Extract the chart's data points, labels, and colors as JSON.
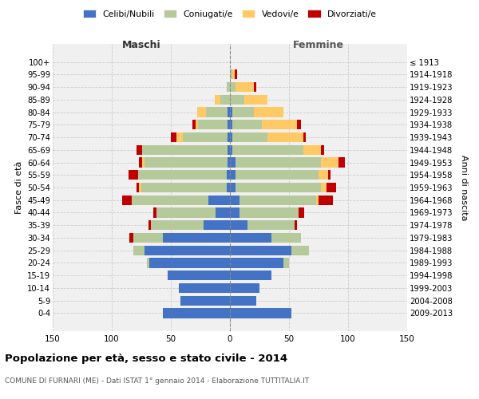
{
  "age_groups": [
    "0-4",
    "5-9",
    "10-14",
    "15-19",
    "20-24",
    "25-29",
    "30-34",
    "35-39",
    "40-44",
    "45-49",
    "50-54",
    "55-59",
    "60-64",
    "65-69",
    "70-74",
    "75-79",
    "80-84",
    "85-89",
    "90-94",
    "95-99",
    "100+"
  ],
  "birth_years": [
    "2009-2013",
    "2004-2008",
    "1999-2003",
    "1994-1998",
    "1989-1993",
    "1984-1988",
    "1979-1983",
    "1974-1978",
    "1969-1973",
    "1964-1968",
    "1959-1963",
    "1954-1958",
    "1949-1953",
    "1944-1948",
    "1939-1943",
    "1934-1938",
    "1929-1933",
    "1924-1928",
    "1919-1923",
    "1914-1918",
    "≤ 1913"
  ],
  "maschi": {
    "celibi": [
      57,
      42,
      43,
      53,
      68,
      72,
      57,
      22,
      12,
      18,
      3,
      3,
      2,
      2,
      2,
      2,
      2,
      0,
      0,
      0,
      0
    ],
    "coniugati": [
      0,
      0,
      0,
      0,
      2,
      10,
      25,
      45,
      50,
      65,
      72,
      75,
      70,
      72,
      38,
      25,
      18,
      8,
      3,
      0,
      0
    ],
    "vedovi": [
      0,
      0,
      0,
      0,
      0,
      0,
      0,
      0,
      0,
      0,
      2,
      0,
      2,
      0,
      5,
      2,
      8,
      5,
      0,
      0,
      0
    ],
    "divorziati": [
      0,
      0,
      0,
      0,
      0,
      0,
      3,
      2,
      3,
      8,
      2,
      8,
      3,
      5,
      5,
      3,
      0,
      0,
      0,
      0,
      0
    ]
  },
  "femmine": {
    "nubili": [
      52,
      22,
      25,
      35,
      45,
      52,
      35,
      15,
      8,
      8,
      5,
      5,
      5,
      2,
      2,
      2,
      2,
      0,
      0,
      0,
      0
    ],
    "coniugate": [
      0,
      0,
      0,
      0,
      5,
      15,
      25,
      40,
      50,
      65,
      72,
      70,
      72,
      60,
      30,
      25,
      18,
      12,
      5,
      2,
      0
    ],
    "vedove": [
      0,
      0,
      0,
      0,
      0,
      0,
      0,
      0,
      0,
      2,
      5,
      8,
      15,
      15,
      30,
      30,
      25,
      20,
      15,
      2,
      0
    ],
    "divorziate": [
      0,
      0,
      0,
      0,
      0,
      0,
      0,
      2,
      5,
      12,
      8,
      2,
      5,
      3,
      2,
      3,
      0,
      0,
      2,
      2,
      0
    ]
  },
  "colors": {
    "celibi": "#4472c4",
    "coniugati": "#b5c99a",
    "vedovi": "#ffc966",
    "divorziati": "#c00000"
  },
  "title": "Popolazione per età, sesso e stato civile - 2014",
  "subtitle": "COMUNE DI FURNARI (ME) - Dati ISTAT 1° gennaio 2014 - Elaborazione TUTTITALIA.IT",
  "xlabel_left": "Maschi",
  "xlabel_right": "Femmine",
  "ylabel": "Fasce di età",
  "ylabel_right": "Anni di nascita",
  "xlim": 150,
  "bg_color": "#f0f0f0",
  "grid_color": "#cccccc",
  "legend_labels": [
    "Celibi/Nubili",
    "Coniugati/e",
    "Vedovi/e",
    "Divorziati/e"
  ]
}
